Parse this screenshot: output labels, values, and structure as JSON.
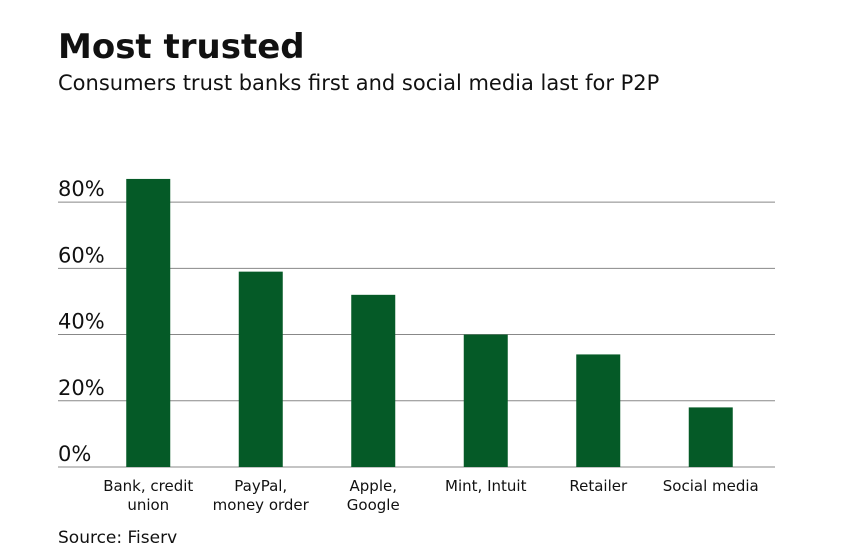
{
  "chart_data": {
    "type": "bar",
    "title": "Most trusted",
    "subtitle": "Consumers trust banks first and social media last for P2P",
    "source": "Source: Fiserv",
    "categories": [
      "Bank, credit union",
      "PayPal, money order",
      "Apple, Google",
      "Mint, Intuit",
      "Retailer",
      "Social media"
    ],
    "values": [
      87,
      59,
      52,
      40,
      34,
      18
    ],
    "color": "#055a27",
    "ylim": [
      0,
      90
    ],
    "yticks": [
      {
        "value": 0,
        "label": "0%"
      },
      {
        "value": 20,
        "label": "20%"
      },
      {
        "value": 40,
        "label": "40%"
      },
      {
        "value": 60,
        "label": "60%"
      },
      {
        "value": 80,
        "label": "80%"
      }
    ],
    "grid": true
  }
}
